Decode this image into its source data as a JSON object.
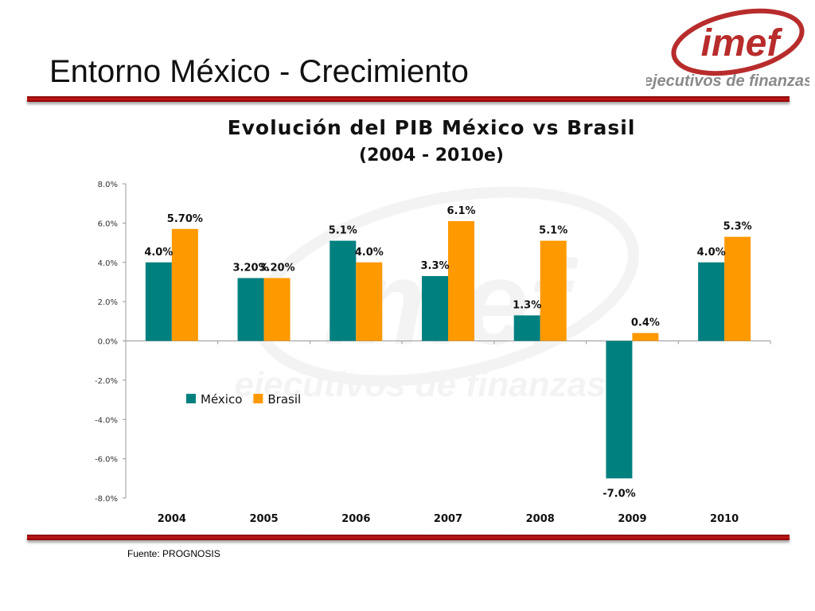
{
  "slide": {
    "title": "Entorno México - Crecimiento",
    "source": "Fuente: PROGNOSIS",
    "logo": {
      "brand": "imef",
      "tagline": "ejecutivos de finanzas"
    }
  },
  "colors": {
    "mexico": "#00807F",
    "brasil": "#FF9900",
    "rule": "#B51A1A",
    "logo_red": "#B82C2C"
  },
  "chart_data": {
    "type": "bar",
    "title": "Evolución del PIB México vs Brasil",
    "subtitle": "(2004 - 2010e)",
    "categories": [
      "2004",
      "2005",
      "2006",
      "2007",
      "2008",
      "2009",
      "2010"
    ],
    "series": [
      {
        "name": "México",
        "values": [
          4.0,
          3.2,
          5.1,
          3.3,
          1.3,
          -7.0,
          4.0
        ],
        "labels": [
          "4.0%",
          "3.20%",
          "5.1%",
          "3.3%",
          "1.3%",
          "-7.0%",
          "4.0%"
        ]
      },
      {
        "name": "Brasil",
        "values": [
          5.7,
          3.2,
          4.0,
          6.1,
          5.1,
          0.4,
          5.3
        ],
        "labels": [
          "5.70%",
          "3.20%",
          "4.0%",
          "6.1%",
          "5.1%",
          "0.4%",
          "5.3%"
        ]
      }
    ],
    "yticks": [
      "8.0%",
      "6.0%",
      "4.0%",
      "2.0%",
      "0.0%",
      "-2.0%",
      "-4.0%",
      "-6.0%",
      "-8.0%"
    ],
    "ylim": [
      -8,
      8
    ],
    "legend_position": "inside left, below zero line",
    "grid": false
  }
}
